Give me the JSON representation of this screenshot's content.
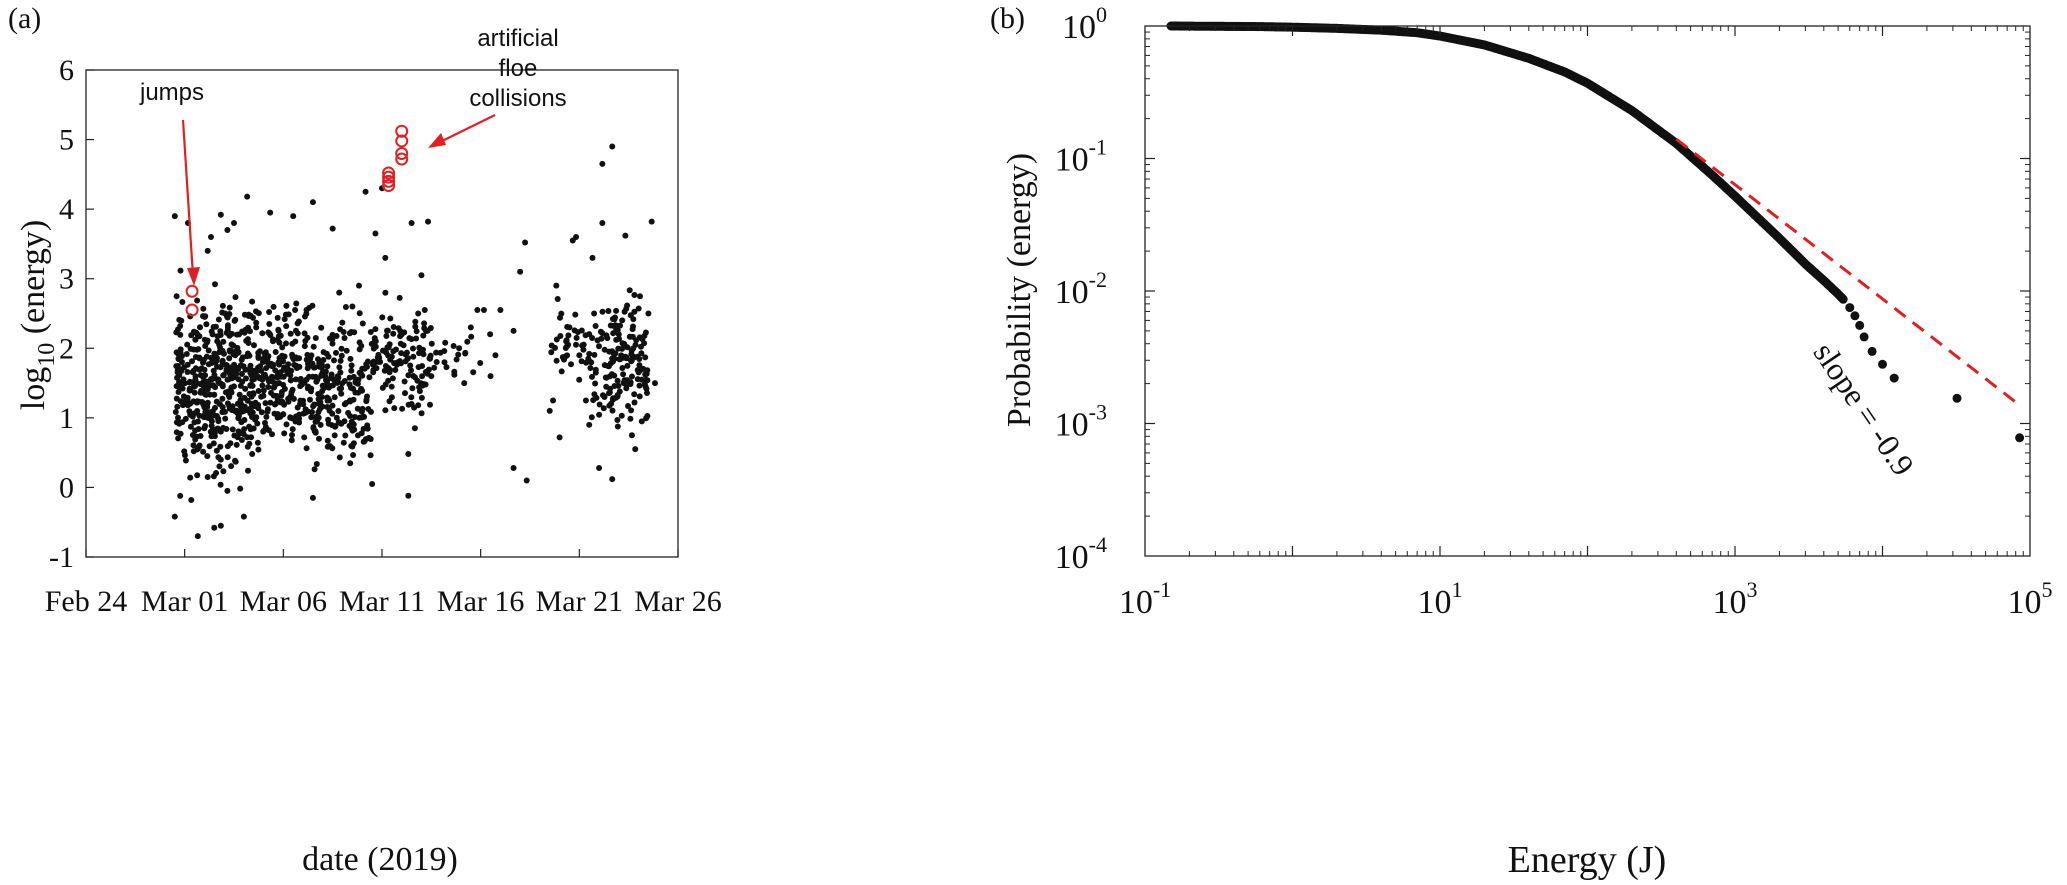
{
  "chart_data": [
    {
      "type": "scatter",
      "panel_label": "(a)",
      "xlabel": "date (2019)",
      "ylabel_base": "log",
      "ylabel_sub": "10",
      "ylabel_rest": " (energy)",
      "xlim": [
        "2019-02-24",
        "2019-03-26"
      ],
      "ylim": [
        -1,
        6
      ],
      "x_ticks": [
        {
          "date": "2019-02-24",
          "label": "Feb 24"
        },
        {
          "date": "2019-03-01",
          "label": "Mar 01"
        },
        {
          "date": "2019-03-06",
          "label": "Mar 06"
        },
        {
          "date": "2019-03-11",
          "label": "Mar 11"
        },
        {
          "date": "2019-03-16",
          "label": "Mar 16"
        },
        {
          "date": "2019-03-21",
          "label": "Mar 21"
        },
        {
          "date": "2019-03-26",
          "label": "Mar 26"
        }
      ],
      "y_ticks": [
        {
          "value": -1,
          "label": "-1"
        },
        {
          "value": 0,
          "label": "0"
        },
        {
          "value": 1,
          "label": "1"
        },
        {
          "value": 2,
          "label": "2"
        },
        {
          "value": 3,
          "label": "3"
        },
        {
          "value": 4,
          "label": "4"
        },
        {
          "value": 5,
          "label": "5"
        },
        {
          "value": 6,
          "label": "6"
        }
      ],
      "series": [
        {
          "color": "#111111",
          "marker": "filled-dot",
          "points": [
            [
              "2019-02-28T12:00",
              -0.42
            ],
            [
              "2019-03-01T16:00",
              -0.7
            ],
            [
              "2019-03-02T12:00",
              -0.58
            ],
            [
              "2019-03-02T20:00",
              -0.55
            ],
            [
              "2019-03-01T08:00",
              -0.18
            ],
            [
              "2019-03-03T04:00",
              -0.05
            ],
            [
              "2019-03-04T00:00",
              -0.42
            ],
            [
              "2019-03-07T12:00",
              -0.15
            ],
            [
              "2019-03-10T12:00",
              0.05
            ],
            [
              "2019-03-12T08:00",
              -0.12
            ],
            [
              "2019-03-18T08:00",
              0.1
            ],
            [
              "2019-03-17T16:00",
              0.28
            ],
            [
              "2019-03-22T16:00",
              0.12
            ],
            [
              "2019-03-22T00:00",
              0.28
            ],
            [
              "2019-03-12T08:00",
              0.48
            ],
            [
              "2019-03-20T00:00",
              0.72
            ],
            [
              "2019-03-19T12:00",
              1.1
            ],
            [
              "2019-03-19T16:00",
              1.25
            ],
            [
              "2019-03-16T12:00",
              1.6
            ],
            [
              "2019-03-16T18:00",
              1.9
            ],
            [
              "2019-03-15T12:00",
              2.3
            ],
            [
              "2019-03-15T20:00",
              2.55
            ],
            [
              "2019-03-16T04:00",
              2.55
            ],
            [
              "2019-03-17T16:00",
              2.25
            ],
            [
              "2019-03-17T00:00",
              2.55
            ],
            [
              "2019-03-18T00:00",
              3.1
            ],
            [
              "2019-03-18T06:00",
              3.52
            ],
            [
              "2019-03-14T04:00",
              1.8
            ],
            [
              "2019-03-14T16:00",
              1.62
            ],
            [
              "2019-03-15T04:00",
              1.5
            ],
            [
              "2019-03-13T04:00",
              2.55
            ],
            [
              "2019-03-12T20:00",
              2.5
            ],
            [
              "2019-03-12T12:00",
              3.8
            ],
            [
              "2019-03-13T00:00",
              3.05
            ],
            [
              "2019-03-13T08:00",
              3.82
            ],
            [
              "2019-03-10T16:00",
              3.65
            ],
            [
              "2019-03-11T00:00",
              4.3
            ],
            [
              "2019-03-10T04:00",
              4.25
            ],
            [
              "2019-03-11T04:00",
              3.3
            ],
            [
              "2019-03-08T12:00",
              3.72
            ],
            [
              "2019-03-07T12:00",
              4.1
            ],
            [
              "2019-03-06T12:00",
              3.9
            ],
            [
              "2019-03-05T08:00",
              3.95
            ],
            [
              "2019-03-04T04:00",
              4.18
            ],
            [
              "2019-03-03T12:00",
              3.8
            ],
            [
              "2019-03-02T20:00",
              3.92
            ],
            [
              "2019-03-02T08:00",
              3.6
            ],
            [
              "2019-02-28T12:00",
              3.9
            ],
            [
              "2019-03-01T04:00",
              3.8
            ],
            [
              "2019-03-02T04:00",
              3.4
            ],
            [
              "2019-03-03T04:00",
              3.7
            ],
            [
              "2019-03-22T04:00",
              3.8
            ],
            [
              "2019-03-22T04:00",
              4.65
            ],
            [
              "2019-03-22T16:00",
              4.9
            ],
            [
              "2019-03-20T16:00",
              3.55
            ],
            [
              "2019-03-20T20:00",
              3.6
            ],
            [
              "2019-03-23T08:00",
              3.62
            ],
            [
              "2019-03-24T16:00",
              3.82
            ],
            [
              "2019-03-21T16:00",
              3.3
            ],
            [
              "2019-03-20T12:00",
              2.3
            ],
            [
              "2019-03-21T00:00",
              1.9
            ],
            [
              "2019-03-19T20:00",
              2.9
            ],
            [
              "2019-03-20T08:00",
              2.1
            ],
            [
              "2019-03-23T16:00",
              0.75
            ],
            [
              "2019-03-23T20:00",
              0.55
            ],
            [
              "2019-03-24T04:00",
              0.95
            ],
            [
              "2019-03-24T20:00",
              1.5
            ],
            [
              "2019-03-24T12:00",
              2.5
            ],
            [
              "2019-03-23T00:00",
              2.2
            ],
            [
              "2019-03-21T12:00",
              0.9
            ],
            [
              "2019-03-21T08:00",
              1.25
            ],
            [
              "2019-03-12T00:00",
              2.2
            ],
            [
              "2019-03-13T12:00",
              1.6
            ],
            [
              "2019-03-12T12:00",
              1.2
            ],
            [
              "2019-03-12T16:00",
              0.85
            ],
            [
              "2019-03-09T12:00",
              2.6
            ],
            [
              "2019-03-09T20:00",
              2.9
            ],
            [
              "2019-03-08T20:00",
              2.8
            ]
          ]
        },
        {
          "name": "jumps",
          "color": "#e02020",
          "marker": "open-circle",
          "points": [
            [
              "2019-03-01T09:00",
              2.82
            ],
            [
              "2019-03-01T09:00",
              2.55
            ]
          ]
        },
        {
          "name": "artificial floe collisions",
          "color": "#e02020",
          "marker": "open-circle",
          "points": [
            [
              "2019-03-11T08:00",
              4.52
            ],
            [
              "2019-03-11T08:00",
              4.46
            ],
            [
              "2019-03-11T08:00",
              4.4
            ],
            [
              "2019-03-11T08:00",
              4.34
            ],
            [
              "2019-03-12T00:00",
              5.12
            ],
            [
              "2019-03-12T00:00",
              4.98
            ],
            [
              "2019-03-12T00:00",
              4.8
            ],
            [
              "2019-03-12T00:00",
              4.72
            ]
          ]
        }
      ],
      "dense_clusters": [
        {
          "x_from": "2019-02-28T12:00",
          "x_to": "2019-03-04T12:00",
          "y_from": -0.3,
          "y_to": 3.2,
          "count": 430,
          "seed": 11
        },
        {
          "x_from": "2019-03-04T12:00",
          "x_to": "2019-03-07T12:00",
          "y_from": 0.2,
          "y_to": 3.0,
          "count": 230,
          "seed": 23
        },
        {
          "x_from": "2019-03-07T12:00",
          "x_to": "2019-03-10T12:00",
          "y_from": -0.1,
          "y_to": 2.7,
          "count": 200,
          "seed": 37
        },
        {
          "x_from": "2019-03-10T12:00",
          "x_to": "2019-03-13T12:00",
          "y_from": 0.8,
          "y_to": 2.9,
          "count": 120,
          "seed": 41
        },
        {
          "x_from": "2019-03-13T12:00",
          "x_to": "2019-03-16T12:00",
          "y_from": 1.4,
          "y_to": 2.6,
          "count": 20,
          "seed": 53
        },
        {
          "x_from": "2019-03-19T12:00",
          "x_to": "2019-03-21T12:00",
          "y_from": 1.2,
          "y_to": 2.8,
          "count": 35,
          "seed": 61
        },
        {
          "x_from": "2019-03-21T12:00",
          "x_to": "2019-03-24T12:00",
          "y_from": 0.6,
          "y_to": 3.0,
          "count": 170,
          "seed": 71
        }
      ],
      "annotations": [
        {
          "text": [
            "jumps"
          ],
          "points_to": "jumps"
        },
        {
          "text": [
            "artificial",
            "floe",
            "collisions"
          ],
          "points_to": "artificial floe collisions"
        }
      ]
    },
    {
      "type": "scatter",
      "panel_label": "(b)",
      "xlabel": "Energy (J)",
      "ylabel": "Probability (energy)",
      "x_scale": "log",
      "y_scale": "log",
      "xlim": [
        0.1,
        100000
      ],
      "ylim": [
        0.0001,
        1
      ],
      "x_ticks": [
        {
          "value": 0.1,
          "base": "10",
          "exp": "-1"
        },
        {
          "value": 10,
          "base": "10",
          "exp": "1"
        },
        {
          "value": 1000,
          "base": "10",
          "exp": "3"
        },
        {
          "value": 100000,
          "base": "10",
          "exp": "5"
        }
      ],
      "y_ticks": [
        {
          "value": 1,
          "base": "10",
          "exp": "0"
        },
        {
          "value": 0.1,
          "base": "10",
          "exp": "-1"
        },
        {
          "value": 0.01,
          "base": "10",
          "exp": "-2"
        },
        {
          "value": 0.001,
          "base": "10",
          "exp": "-3"
        },
        {
          "value": 0.0001,
          "base": "10",
          "exp": "-4"
        }
      ],
      "series": [
        {
          "color": "#111111",
          "marker": "filled-dot",
          "curve": [
            [
              0.15,
              1.0
            ],
            [
              0.3,
              0.995
            ],
            [
              0.6,
              0.99
            ],
            [
              1,
              0.98
            ],
            [
              2,
              0.96
            ],
            [
              4,
              0.93
            ],
            [
              7,
              0.89
            ],
            [
              10,
              0.84
            ],
            [
              20,
              0.72
            ],
            [
              40,
              0.57
            ],
            [
              70,
              0.45
            ],
            [
              100,
              0.37
            ],
            [
              200,
              0.23
            ],
            [
              400,
              0.13
            ],
            [
              700,
              0.075
            ],
            [
              1000,
              0.052
            ],
            [
              2000,
              0.025
            ],
            [
              3000,
              0.016
            ],
            [
              4000,
              0.012
            ],
            [
              5000,
              0.0095
            ],
            [
              5500,
              0.0085
            ]
          ],
          "points": [
            [
              6000,
              0.0075
            ],
            [
              6500,
              0.0065
            ],
            [
              7000,
              0.0055
            ],
            [
              7500,
              0.0045
            ],
            [
              8500,
              0.0035
            ],
            [
              10000,
              0.0028
            ],
            [
              12000,
              0.0022
            ],
            [
              32000,
              0.00155
            ],
            [
              85000,
              0.00078
            ]
          ]
        },
        {
          "name": "slope = -0.9",
          "color": "#e02020",
          "style": "dashed",
          "from": [
            400,
            0.14
          ],
          "to": [
            80000,
            0.00145
          ]
        }
      ],
      "annotations": [
        {
          "text": "slope = -0.9"
        }
      ]
    }
  ]
}
